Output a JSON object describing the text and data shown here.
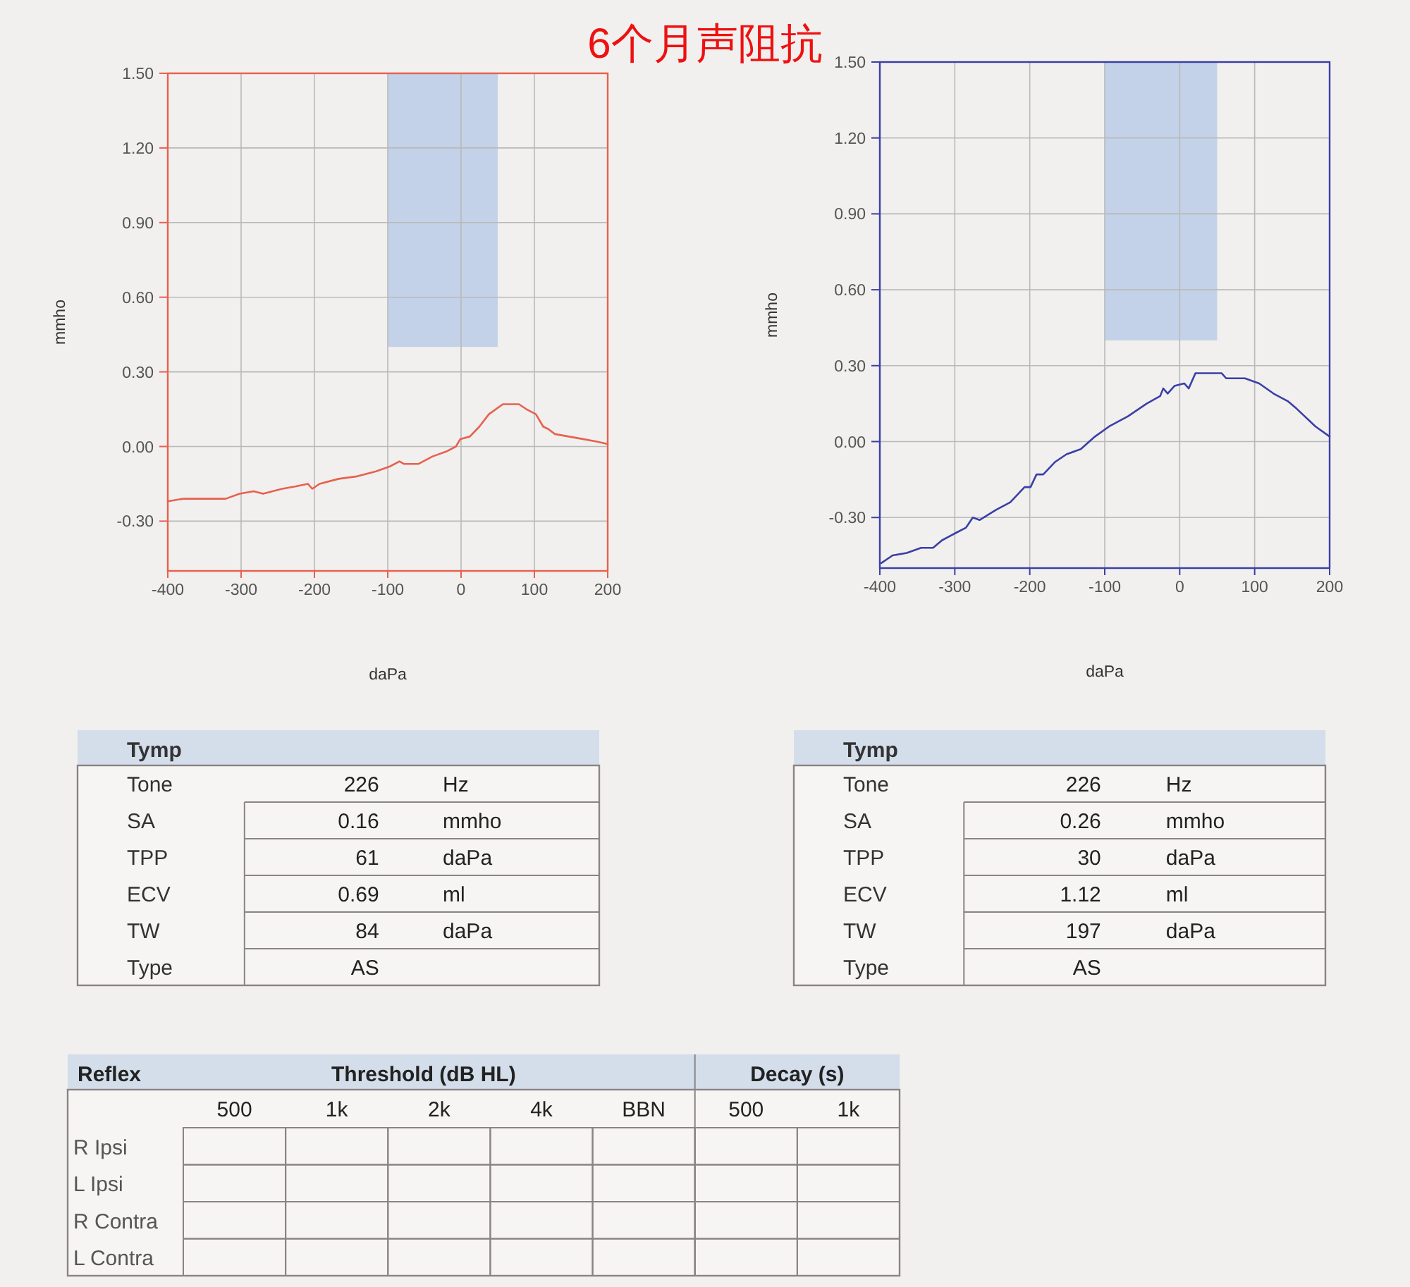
{
  "chart_data": [
    {
      "type": "line",
      "title": "6个月声阻抗",
      "xlabel": "daPa",
      "ylabel": "mmho",
      "xlim": [
        -400,
        200
      ],
      "xticks": [
        -400,
        -300,
        -200,
        -100,
        0,
        100,
        200
      ],
      "ylim": [
        -0.5,
        1.5
      ],
      "yticks": [
        {
          "value": 1.5,
          "label": "1.50"
        },
        {
          "value": 1.2,
          "label": "1.20"
        },
        {
          "value": 0.9,
          "label": "0.90"
        },
        {
          "value": 0.6,
          "label": "0.60"
        },
        {
          "value": 0.3,
          "label": "0.30"
        },
        {
          "value": 0,
          "label": "0.00"
        },
        {
          "value": -0.3,
          "label": "-0.30"
        }
      ],
      "grid": true,
      "series": [
        {
          "type": "area",
          "color": "#c3d2e8",
          "x": [
            -100,
            50
          ],
          "values": [
            null,
            null
          ],
          "lower": [
            0.4,
            0.4
          ],
          "upper": [
            1.5,
            1.5
          ]
        },
        {
          "color": "#e8604f",
          "x": [
            -400,
            -379,
            -353,
            -321,
            -302,
            -283,
            -270,
            -244,
            -225,
            -209,
            -203,
            -193,
            -167,
            -142,
            -116,
            -97,
            -84,
            -78,
            -58,
            -39,
            -20,
            -7,
            -1,
            12,
            25,
            38,
            57,
            70,
            79,
            89,
            102,
            112,
            119,
            128,
            147,
            166,
            185,
            200
          ],
          "values": [
            -0.22,
            -0.21,
            -0.21,
            -0.21,
            -0.19,
            -0.18,
            -0.19,
            -0.17,
            -0.16,
            -0.15,
            -0.17,
            -0.15,
            -0.13,
            -0.12,
            -0.1,
            -0.08,
            -0.06,
            -0.07,
            -0.07,
            -0.04,
            -0.02,
            0.0,
            0.03,
            0.04,
            0.08,
            0.13,
            0.17,
            0.17,
            0.17,
            0.15,
            0.13,
            0.08,
            0.07,
            0.05,
            0.04,
            0.03,
            0.02,
            0.01
          ]
        }
      ]
    },
    {
      "type": "line",
      "xlabel": "daPa",
      "ylabel": "mmho",
      "xlim": [
        -400,
        200
      ],
      "xticks": [
        -400,
        -300,
        -200,
        -100,
        0,
        100,
        200
      ],
      "ylim": [
        -0.5,
        1.5
      ],
      "yticks": [
        {
          "value": 1.5,
          "label": "1.50"
        },
        {
          "value": 1.2,
          "label": "1.20"
        },
        {
          "value": 0.9,
          "label": "0.90"
        },
        {
          "value": 0.6,
          "label": "0.60"
        },
        {
          "value": 0.3,
          "label": "0.30"
        },
        {
          "value": 0,
          "label": "0.00"
        },
        {
          "value": -0.3,
          "label": "-0.30"
        }
      ],
      "grid": true,
      "series": [
        {
          "type": "area",
          "color": "#c3d2e8",
          "x": [
            -100,
            50
          ],
          "values": [
            null,
            null
          ],
          "lower": [
            0.4,
            0.4
          ],
          "upper": [
            1.5,
            1.5
          ]
        },
        {
          "color": "#3b3fa6",
          "x": [
            -398,
            -383,
            -364,
            -345,
            -329,
            -317,
            -298,
            -285,
            -276,
            -267,
            -245,
            -226,
            -207,
            -199,
            -191,
            -182,
            -166,
            -151,
            -132,
            -113,
            -94,
            -69,
            -44,
            -26,
            -22,
            -16,
            -7,
            6,
            12,
            21,
            31,
            43,
            56,
            62,
            87,
            106,
            125,
            144,
            156,
            181,
            200
          ],
          "values": [
            -0.48,
            -0.45,
            -0.44,
            -0.42,
            -0.42,
            -0.39,
            -0.36,
            -0.34,
            -0.3,
            -0.31,
            -0.27,
            -0.24,
            -0.18,
            -0.18,
            -0.13,
            -0.13,
            -0.08,
            -0.05,
            -0.03,
            0.02,
            0.06,
            0.1,
            0.15,
            0.18,
            0.21,
            0.19,
            0.22,
            0.23,
            0.21,
            0.27,
            0.27,
            0.27,
            0.27,
            0.25,
            0.25,
            0.23,
            0.19,
            0.16,
            0.13,
            0.06,
            0.02
          ]
        }
      ]
    },
    {
      "type": "other",
      "title": "Tymp",
      "y_categories": [
        "Tone",
        "SA",
        "TPP",
        "ECV",
        "TW",
        "Type"
      ],
      "cell_labels": [
        [
          "226",
          "Hz"
        ],
        [
          "0.16",
          "mmho"
        ],
        [
          "61",
          "daPa"
        ],
        [
          "0.69",
          "ml"
        ],
        [
          "84",
          "daPa"
        ],
        [
          "AS",
          null
        ]
      ]
    },
    {
      "type": "other",
      "title": "Tymp",
      "y_categories": [
        "Tone",
        "SA",
        "TPP",
        "ECV",
        "TW",
        "Type"
      ],
      "cell_labels": [
        [
          "226",
          "Hz"
        ],
        [
          "0.26",
          "mmho"
        ],
        [
          "30",
          "daPa"
        ],
        [
          "1.12",
          "ml"
        ],
        [
          "197",
          "daPa"
        ],
        [
          "AS",
          null
        ]
      ]
    },
    {
      "type": "other",
      "title": "Reflex",
      "annotations": [
        "Threshold (dB HL)",
        "Decay (s)"
      ],
      "categories": [
        "500",
        "1k",
        "2k",
        "4k",
        "BBN",
        "500",
        "1k"
      ],
      "y_categories": [
        "R Ipsi",
        "L Ipsi",
        "R Contra",
        "L Contra"
      ]
    }
  ]
}
